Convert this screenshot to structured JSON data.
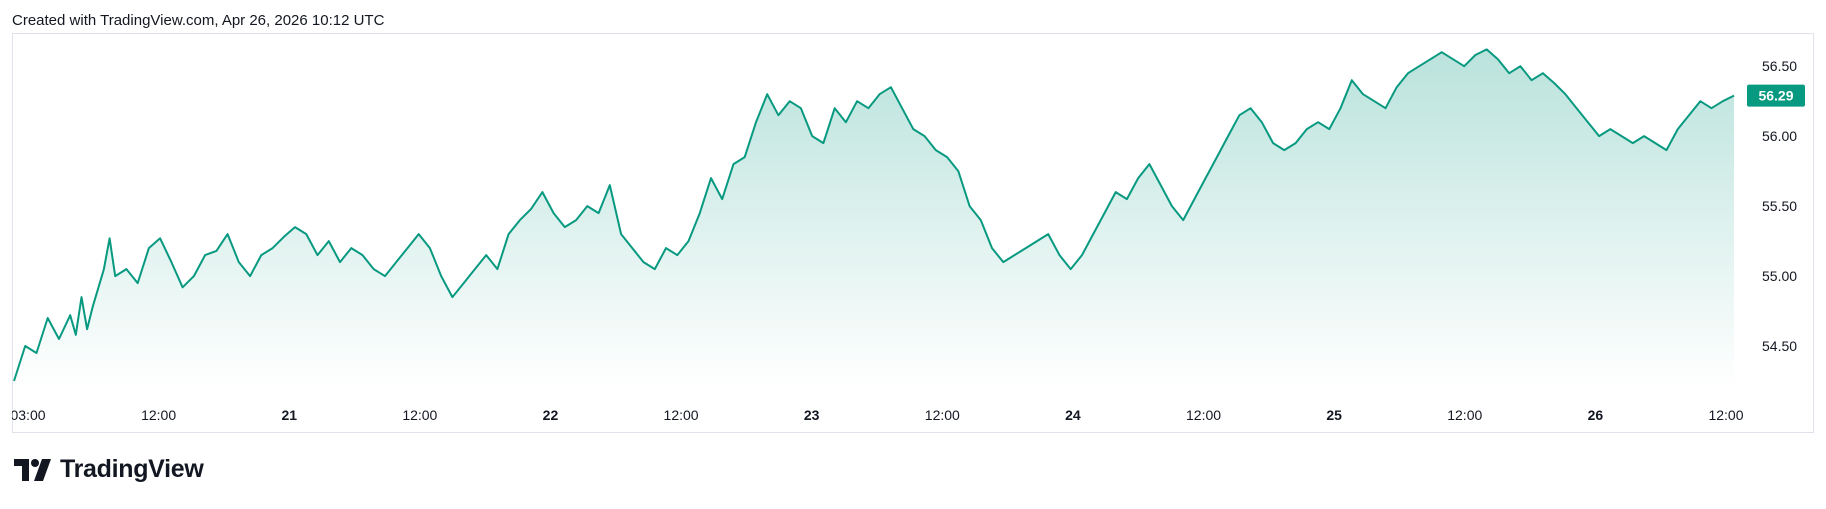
{
  "header": {
    "caption": "Created with TradingView.com, Apr 26, 2026 10:12 UTC"
  },
  "branding": {
    "logo_text": "TradingView",
    "logo_icon": "tradingview-logo-icon"
  },
  "colors": {
    "line": "#089981",
    "fill_top": "#089981",
    "badge": "#089981",
    "frame": "#e0e3eb"
  },
  "chart_data": {
    "type": "area",
    "title": "",
    "xlabel": "",
    "ylabel": "",
    "ylim": [
      54.2,
      56.68
    ],
    "y_ticks": [
      "56.50",
      "56.00",
      "55.50",
      "55.00",
      "54.50"
    ],
    "last_value_label": "56.29",
    "x_ticks": [
      {
        "label": "03:00",
        "bold": false
      },
      {
        "label": "12:00",
        "bold": false
      },
      {
        "label": "21",
        "bold": true
      },
      {
        "label": "12:00",
        "bold": false
      },
      {
        "label": "22",
        "bold": true
      },
      {
        "label": "12:00",
        "bold": false
      },
      {
        "label": "23",
        "bold": true
      },
      {
        "label": "12:00",
        "bold": false
      },
      {
        "label": "24",
        "bold": true
      },
      {
        "label": "12:00",
        "bold": false
      },
      {
        "label": "25",
        "bold": true
      },
      {
        "label": "12:00",
        "bold": false
      },
      {
        "label": "26",
        "bold": true
      },
      {
        "label": "12:00",
        "bold": false
      }
    ],
    "x_unit": "hours from Apr 20 03:00 UTC",
    "x_range": [
      0,
      153
    ],
    "series": [
      {
        "points": [
          [
            0,
            54.25
          ],
          [
            1,
            54.5
          ],
          [
            2,
            54.45
          ],
          [
            3,
            54.7
          ],
          [
            4,
            54.55
          ],
          [
            5,
            54.72
          ],
          [
            5.5,
            54.58
          ],
          [
            6,
            54.85
          ],
          [
            6.5,
            54.62
          ],
          [
            7,
            54.78
          ],
          [
            8,
            55.05
          ],
          [
            8.5,
            55.27
          ],
          [
            9,
            55.0
          ],
          [
            10,
            55.05
          ],
          [
            11,
            54.95
          ],
          [
            12,
            55.2
          ],
          [
            13,
            55.27
          ],
          [
            14,
            55.1
          ],
          [
            15,
            54.92
          ],
          [
            16,
            55.0
          ],
          [
            17,
            55.15
          ],
          [
            18,
            55.18
          ],
          [
            19,
            55.3
          ],
          [
            20,
            55.1
          ],
          [
            21,
            55.0
          ],
          [
            22,
            55.15
          ],
          [
            23,
            55.2
          ],
          [
            24,
            55.28
          ],
          [
            25,
            55.35
          ],
          [
            26,
            55.3
          ],
          [
            27,
            55.15
          ],
          [
            28,
            55.25
          ],
          [
            29,
            55.1
          ],
          [
            30,
            55.2
          ],
          [
            31,
            55.15
          ],
          [
            32,
            55.05
          ],
          [
            33,
            55.0
          ],
          [
            34,
            55.1
          ],
          [
            35,
            55.2
          ],
          [
            36,
            55.3
          ],
          [
            37,
            55.2
          ],
          [
            38,
            55.0
          ],
          [
            39,
            54.85
          ],
          [
            40,
            54.95
          ],
          [
            41,
            55.05
          ],
          [
            42,
            55.15
          ],
          [
            43,
            55.05
          ],
          [
            44,
            55.3
          ],
          [
            45,
            55.4
          ],
          [
            46,
            55.48
          ],
          [
            47,
            55.6
          ],
          [
            48,
            55.45
          ],
          [
            49,
            55.35
          ],
          [
            50,
            55.4
          ],
          [
            51,
            55.5
          ],
          [
            52,
            55.45
          ],
          [
            53,
            55.65
          ],
          [
            54,
            55.3
          ],
          [
            55,
            55.2
          ],
          [
            56,
            55.1
          ],
          [
            57,
            55.05
          ],
          [
            58,
            55.2
          ],
          [
            59,
            55.15
          ],
          [
            60,
            55.25
          ],
          [
            61,
            55.45
          ],
          [
            62,
            55.7
          ],
          [
            63,
            55.55
          ],
          [
            64,
            55.8
          ],
          [
            65,
            55.85
          ],
          [
            66,
            56.1
          ],
          [
            67,
            56.3
          ],
          [
            68,
            56.15
          ],
          [
            69,
            56.25
          ],
          [
            70,
            56.2
          ],
          [
            71,
            56.0
          ],
          [
            72,
            55.95
          ],
          [
            73,
            56.2
          ],
          [
            74,
            56.1
          ],
          [
            75,
            56.25
          ],
          [
            76,
            56.2
          ],
          [
            77,
            56.3
          ],
          [
            78,
            56.35
          ],
          [
            79,
            56.2
          ],
          [
            80,
            56.05
          ],
          [
            81,
            56.0
          ],
          [
            82,
            55.9
          ],
          [
            83,
            55.85
          ],
          [
            84,
            55.75
          ],
          [
            85,
            55.5
          ],
          [
            86,
            55.4
          ],
          [
            87,
            55.2
          ],
          [
            88,
            55.1
          ],
          [
            89,
            55.15
          ],
          [
            90,
            55.2
          ],
          [
            91,
            55.25
          ],
          [
            92,
            55.3
          ],
          [
            93,
            55.15
          ],
          [
            94,
            55.05
          ],
          [
            95,
            55.15
          ],
          [
            96,
            55.3
          ],
          [
            97,
            55.45
          ],
          [
            98,
            55.6
          ],
          [
            99,
            55.55
          ],
          [
            100,
            55.7
          ],
          [
            101,
            55.8
          ],
          [
            102,
            55.65
          ],
          [
            103,
            55.5
          ],
          [
            104,
            55.4
          ],
          [
            105,
            55.55
          ],
          [
            106,
            55.7
          ],
          [
            107,
            55.85
          ],
          [
            108,
            56.0
          ],
          [
            109,
            56.15
          ],
          [
            110,
            56.2
          ],
          [
            111,
            56.1
          ],
          [
            112,
            55.95
          ],
          [
            113,
            55.9
          ],
          [
            114,
            55.95
          ],
          [
            115,
            56.05
          ],
          [
            116,
            56.1
          ],
          [
            117,
            56.05
          ],
          [
            118,
            56.2
          ],
          [
            119,
            56.4
          ],
          [
            120,
            56.3
          ],
          [
            121,
            56.25
          ],
          [
            122,
            56.2
          ],
          [
            123,
            56.35
          ],
          [
            124,
            56.45
          ],
          [
            125,
            56.5
          ],
          [
            126,
            56.55
          ],
          [
            127,
            56.6
          ],
          [
            128,
            56.55
          ],
          [
            129,
            56.5
          ],
          [
            130,
            56.58
          ],
          [
            131,
            56.62
          ],
          [
            132,
            56.55
          ],
          [
            133,
            56.45
          ],
          [
            134,
            56.5
          ],
          [
            135,
            56.4
          ],
          [
            136,
            56.45
          ],
          [
            137,
            56.38
          ],
          [
            138,
            56.3
          ],
          [
            139,
            56.2
          ],
          [
            140,
            56.1
          ],
          [
            141,
            56.0
          ],
          [
            142,
            56.05
          ],
          [
            143,
            56.0
          ],
          [
            144,
            55.95
          ],
          [
            145,
            56.0
          ],
          [
            146,
            55.95
          ],
          [
            147,
            55.9
          ],
          [
            148,
            56.05
          ],
          [
            149,
            56.15
          ],
          [
            150,
            56.25
          ],
          [
            151,
            56.2
          ],
          [
            152,
            56.25
          ],
          [
            153,
            56.29
          ]
        ]
      }
    ]
  }
}
